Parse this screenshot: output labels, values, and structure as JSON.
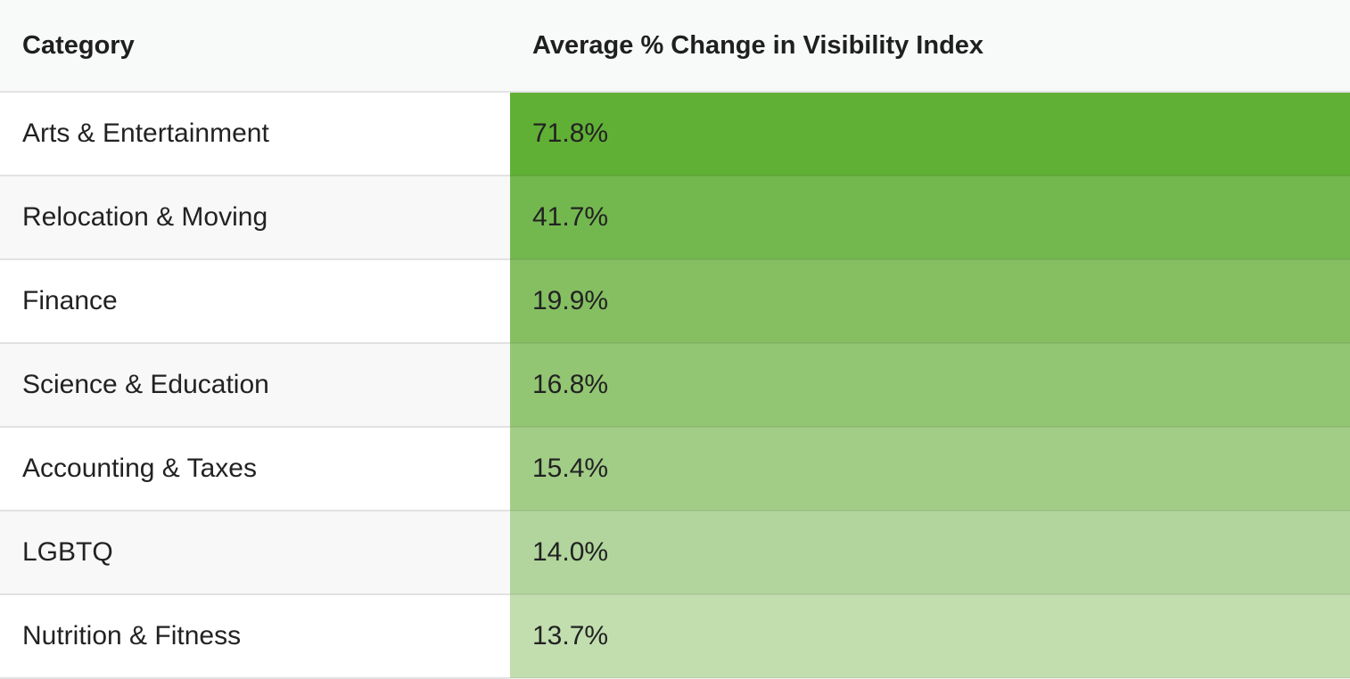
{
  "chart_data": {
    "type": "table",
    "columns": [
      "Category",
      "Average % Change in Visibility Index"
    ],
    "rows": [
      {
        "category": "Arts & Entertainment",
        "value": "71.8%",
        "color": "#61b036"
      },
      {
        "category": "Relocation & Moving",
        "value": "41.7%",
        "color": "#73b84f"
      },
      {
        "category": "Finance",
        "value": "19.9%",
        "color": "#85bf62"
      },
      {
        "category": "Science & Education",
        "value": "16.8%",
        "color": "#93c673"
      },
      {
        "category": "Accounting & Taxes",
        "value": "15.4%",
        "color": "#a2cd87"
      },
      {
        "category": "LGBTQ",
        "value": "14.0%",
        "color": "#b1d59c"
      },
      {
        "category": "Nutrition & Fitness",
        "value": "13.7%",
        "color": "#c2deaf"
      }
    ]
  }
}
